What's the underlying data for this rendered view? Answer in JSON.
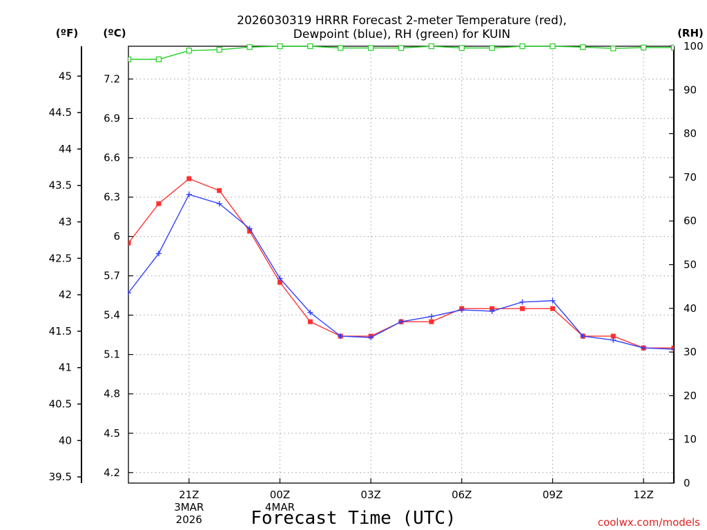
{
  "title_line1": "2026030319 HRRR Forecast 2-meter Temperature (red),",
  "title_line2": "Dewpoint (blue), RH (green) for KUIN",
  "unit_f": "(ºF)",
  "unit_c": "(ºC)",
  "unit_rh": "(RH)",
  "credit": "coolwx.com/models",
  "colors": {
    "temperature": "#ff3030",
    "dewpoint": "#3040ff",
    "rh": "#20d020"
  },
  "chart_data": {
    "type": "line",
    "xlabel": "Forecast Time (UTC)",
    "x": [
      19,
      20,
      21,
      22,
      23,
      24,
      25,
      26,
      27,
      28,
      29,
      30,
      31,
      32,
      33,
      34,
      35,
      36,
      37
    ],
    "xlim": [
      19,
      37
    ],
    "x_ticks": [
      {
        "x": 21,
        "lines": [
          "21Z",
          "3MAR",
          "2026"
        ]
      },
      {
        "x": 24,
        "lines": [
          "00Z",
          "4MAR"
        ]
      },
      {
        "x": 27,
        "lines": [
          "03Z"
        ]
      },
      {
        "x": 30,
        "lines": [
          "06Z"
        ]
      },
      {
        "x": 33,
        "lines": [
          "09Z"
        ]
      },
      {
        "x": 36,
        "lines": [
          "12Z"
        ]
      }
    ],
    "ylim_c": [
      4.12,
      7.45
    ],
    "c_ticks": [
      4.2,
      4.5,
      4.8,
      5.1,
      5.4,
      5.7,
      6,
      6.3,
      6.6,
      6.9,
      7.2
    ],
    "f_ticks": [
      39.5,
      40,
      40.5,
      41,
      41.5,
      42,
      42.5,
      43,
      43.5,
      44,
      44.5,
      45
    ],
    "ylim_rh": [
      0,
      100
    ],
    "rh_ticks": [
      0,
      10,
      20,
      30,
      40,
      50,
      60,
      70,
      80,
      90,
      100
    ],
    "grid": true,
    "series": [
      {
        "name": "Temperature",
        "axis": "c",
        "values": [
          5.95,
          6.25,
          6.44,
          6.35,
          6.04,
          5.65,
          5.35,
          5.24,
          5.24,
          5.35,
          5.35,
          5.45,
          5.45,
          5.45,
          5.45,
          5.24,
          5.24,
          5.15,
          5.15
        ]
      },
      {
        "name": "Dewpoint",
        "axis": "c",
        "values": [
          5.57,
          5.87,
          6.32,
          6.25,
          6.06,
          5.68,
          5.42,
          5.24,
          5.23,
          5.35,
          5.39,
          5.44,
          5.43,
          5.5,
          5.51,
          5.24,
          5.21,
          5.15,
          5.14
        ]
      },
      {
        "name": "RH",
        "axis": "rh",
        "values": [
          97,
          97,
          99,
          99.2,
          99.8,
          100,
          100,
          99.6,
          99.6,
          99.6,
          100,
          99.6,
          99.6,
          100,
          100,
          99.8,
          99.5,
          99.7,
          99.7
        ]
      }
    ]
  }
}
